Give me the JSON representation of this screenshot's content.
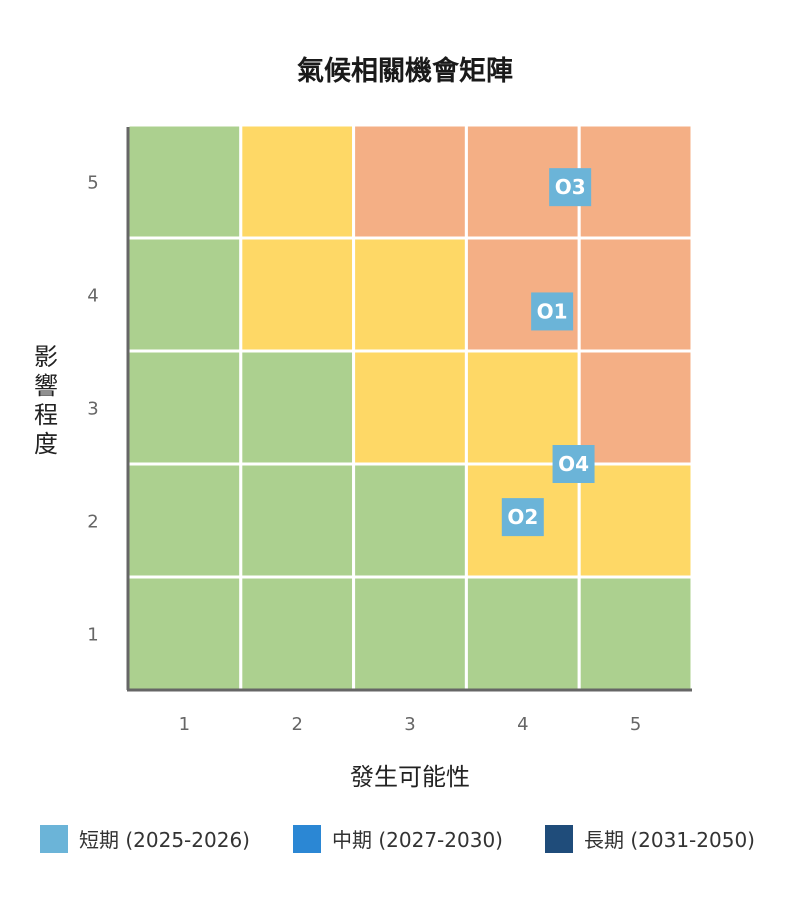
{
  "chart_data": {
    "type": "heatmap",
    "title": "氣候相關機會矩陣",
    "xlabel": "發生可能性",
    "ylabel": "影響程度",
    "x_ticks": [
      "1",
      "2",
      "3",
      "4",
      "5"
    ],
    "y_ticks": [
      "1",
      "2",
      "3",
      "4",
      "5"
    ],
    "xlim": [
      0.5,
      5.5
    ],
    "ylim": [
      0.5,
      5.5
    ],
    "grid": true,
    "legend_position": "bottom",
    "zone_colors": {
      "low": "#acd08f",
      "medium": "#fed866",
      "high": "#f4af85"
    },
    "cells": [
      [
        "low",
        "low",
        "low",
        "low",
        "low"
      ],
      [
        "low",
        "low",
        "low",
        "medium",
        "medium"
      ],
      [
        "low",
        "low",
        "medium",
        "medium",
        "high"
      ],
      [
        "low",
        "medium",
        "medium",
        "high",
        "high"
      ],
      [
        "low",
        "medium",
        "high",
        "high",
        "high"
      ]
    ],
    "markers": [
      {
        "label": "O3",
        "x": 4.42,
        "y": 4.95,
        "color": "#6bb4d8"
      },
      {
        "label": "O1",
        "x": 4.26,
        "y": 3.85,
        "color": "#6bb4d8"
      },
      {
        "label": "O4",
        "x": 4.45,
        "y": 2.5,
        "color": "#6bb4d8"
      },
      {
        "label": "O2",
        "x": 4.0,
        "y": 2.03,
        "color": "#6bb4d8"
      }
    ],
    "legend": [
      {
        "label": "短期 (2025-2026)",
        "color": "#6bb4d8"
      },
      {
        "label": "中期 (2027-2030)",
        "color": "#2b87d4"
      },
      {
        "label": "長期 (2031-2050)",
        "color": "#1f4c7a"
      }
    ]
  }
}
